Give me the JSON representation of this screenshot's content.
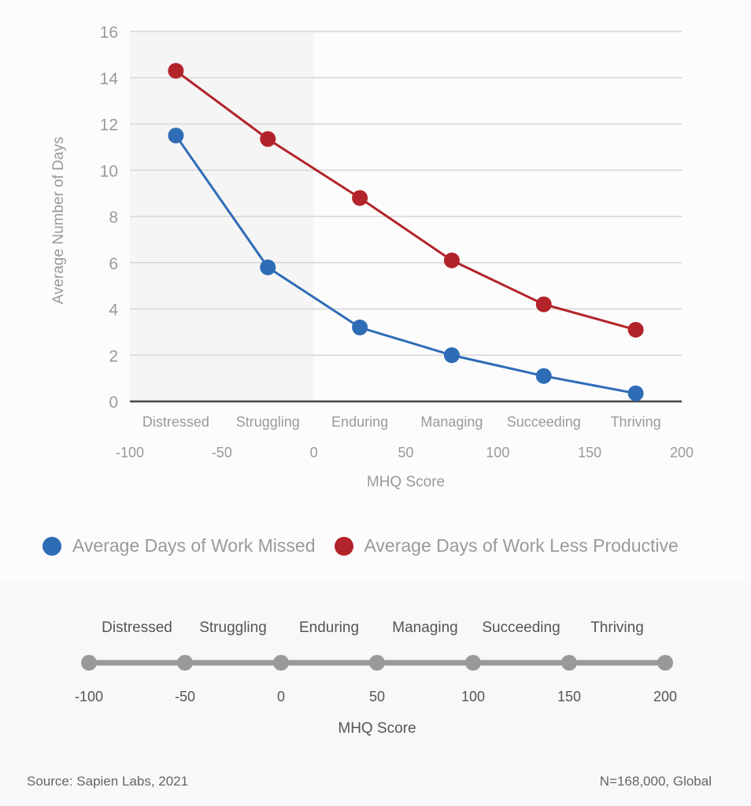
{
  "chart_data": {
    "type": "line",
    "ylabel": "Average Number of Days",
    "xlabel": "MHQ Score",
    "ylim": [
      0,
      16
    ],
    "yticks": [
      0,
      2,
      4,
      6,
      8,
      10,
      12,
      14,
      16
    ],
    "xlim": [
      -100,
      200
    ],
    "xticks": [
      -100,
      -50,
      0,
      50,
      100,
      150,
      200
    ],
    "grid": true,
    "shaded_range": [
      -100,
      0
    ],
    "categories": [
      "Distressed",
      "Struggling",
      "Enduring",
      "Managing",
      "Succeeding",
      "Thriving"
    ],
    "x": [
      -75,
      -25,
      25,
      75,
      125,
      175
    ],
    "series": [
      {
        "name": "Average Days of Work Missed",
        "color": "#2f6cb6",
        "values": [
          11.5,
          5.8,
          3.2,
          2.0,
          1.1,
          0.35
        ]
      },
      {
        "name": "Average Days of Work Less Productive",
        "color": "#b3232a",
        "values": [
          14.3,
          11.35,
          8.8,
          6.1,
          4.2,
          3.1
        ]
      }
    ],
    "legend_position": "bottom"
  },
  "scale": {
    "categories": [
      "Distressed",
      "Struggling",
      "Enduring",
      "Managing",
      "Succeeding",
      "Thriving"
    ],
    "ticks": [
      -100,
      -50,
      0,
      50,
      100,
      150,
      200
    ],
    "label": "MHQ Score"
  },
  "footer": {
    "source": "Source: Sapien Labs, 2021",
    "sample": "N=168,000, Global"
  }
}
